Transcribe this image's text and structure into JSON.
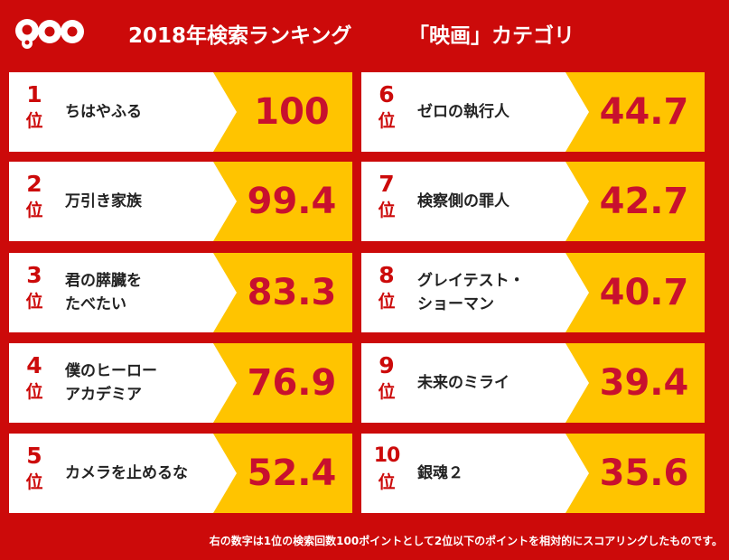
{
  "header": {
    "logo_text": "goo",
    "title": "2018年検索ランキング",
    "category": "「映画」カテゴリ"
  },
  "rank_suffix": "位",
  "rankings": [
    {
      "rank": "1",
      "title_lines": [
        "ちはやふる"
      ],
      "score": "100"
    },
    {
      "rank": "2",
      "title_lines": [
        "万引き家族"
      ],
      "score": "99.4"
    },
    {
      "rank": "3",
      "title_lines": [
        "君の膵臓を",
        "たべたい"
      ],
      "score": "83.3"
    },
    {
      "rank": "4",
      "title_lines": [
        "僕のヒーロー",
        "アカデミア"
      ],
      "score": "76.9"
    },
    {
      "rank": "5",
      "title_lines": [
        "カメラを止めるな"
      ],
      "score": "52.4"
    },
    {
      "rank": "6",
      "title_lines": [
        "ゼロの執行人"
      ],
      "score": "44.7"
    },
    {
      "rank": "7",
      "title_lines": [
        "検察側の罪人"
      ],
      "score": "42.7"
    },
    {
      "rank": "8",
      "title_lines": [
        "グレイテスト・",
        "ショーマン"
      ],
      "score": "40.7"
    },
    {
      "rank": "9",
      "title_lines": [
        "未来のミライ"
      ],
      "score": "39.4"
    },
    {
      "rank": "10",
      "title_lines": [
        "銀魂２"
      ],
      "score": "35.6"
    }
  ],
  "footnote": "右の数字は1位の検索回数100ポイントとして2位以下のポイントを相対的にスコアリングしたものです。",
  "colors": {
    "background": "#cc0a0a",
    "card": "#ffffff",
    "score_panel": "#ffc400",
    "rank_text": "#cc0a0a",
    "score_text": "#c8102e"
  }
}
